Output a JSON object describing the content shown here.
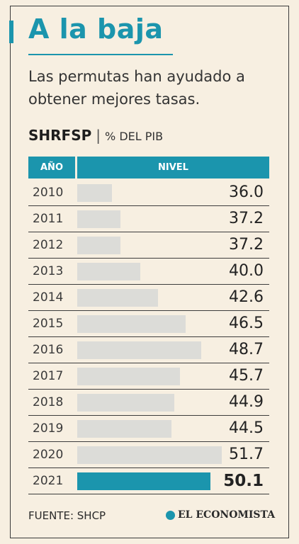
{
  "title": "A la baja",
  "subtitle": "Las permutas han ayudado a obtener mejores tasas.",
  "heading": {
    "bold": "SHRFSP",
    "separator": "|",
    "unit": "% DEL PIB"
  },
  "table": {
    "col_year": "AÑO",
    "col_level": "NIVEL"
  },
  "source": "FUENTE: SHCP",
  "logo_text": "EL ECONOMISTA",
  "colors": {
    "accent": "#1b95ad",
    "bar": "#dcdcd8",
    "background": "#f7efe1"
  },
  "chart_data": {
    "type": "bar",
    "orientation": "horizontal",
    "title": "SHRFSP",
    "unit": "% DEL PIB",
    "categories": [
      "2010",
      "2011",
      "2012",
      "2013",
      "2014",
      "2015",
      "2016",
      "2017",
      "2018",
      "2019",
      "2020",
      "2021"
    ],
    "values": [
      36.0,
      37.2,
      37.2,
      40.0,
      42.6,
      46.5,
      48.7,
      45.7,
      44.9,
      44.5,
      51.7,
      50.1
    ],
    "labels": [
      "36.0",
      "37.2",
      "37.2",
      "40.0",
      "42.6",
      "46.5",
      "48.7",
      "45.7",
      "44.9",
      "44.5",
      "51.7",
      "50.1"
    ],
    "highlight": "2021",
    "xlim": [
      31,
      52.5
    ]
  }
}
